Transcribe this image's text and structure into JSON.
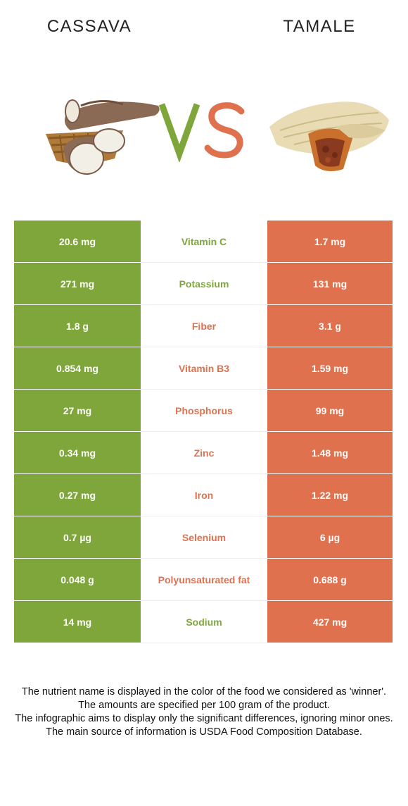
{
  "header": {
    "left_food": "CASSAVA",
    "right_food": "TAMALE",
    "vs_text": "VS"
  },
  "colors": {
    "left": "#7ea63a",
    "right": "#e0714f"
  },
  "images": {
    "left": "cassava-image",
    "right": "tamale-image"
  },
  "rows": [
    {
      "left": "20.6 mg",
      "name": "Vitamin C",
      "right": "1.7 mg",
      "winner": "left"
    },
    {
      "left": "271 mg",
      "name": "Potassium",
      "right": "131 mg",
      "winner": "left"
    },
    {
      "left": "1.8 g",
      "name": "Fiber",
      "right": "3.1 g",
      "winner": "right"
    },
    {
      "left": "0.854 mg",
      "name": "Vitamin B3",
      "right": "1.59 mg",
      "winner": "right"
    },
    {
      "left": "27 mg",
      "name": "Phosphorus",
      "right": "99 mg",
      "winner": "right"
    },
    {
      "left": "0.34 mg",
      "name": "Zinc",
      "right": "1.48 mg",
      "winner": "right"
    },
    {
      "left": "0.27 mg",
      "name": "Iron",
      "right": "1.22 mg",
      "winner": "right"
    },
    {
      "left": "0.7 µg",
      "name": "Selenium",
      "right": "6 µg",
      "winner": "right"
    },
    {
      "left": "0.048 g",
      "name": "Polyunsaturated fat",
      "right": "0.688 g",
      "winner": "right"
    },
    {
      "left": "14 mg",
      "name": "Sodium",
      "right": "427 mg",
      "winner": "left"
    }
  ],
  "footer": {
    "line1": "The nutrient name is displayed in the color of the food we considered as 'winner'.",
    "line2": "The amounts are specified per 100 gram of the product.",
    "line3": "The infographic aims to display only the significant differences, ignoring minor ones.",
    "line4": "The main source of information is USDA Food Composition Database."
  }
}
